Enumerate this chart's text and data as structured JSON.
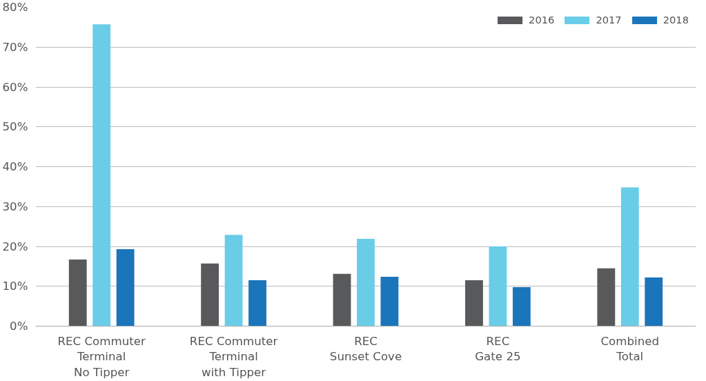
{
  "chart_data": {
    "type": "bar",
    "categories": [
      "REC Commuter\nTerminal\nNo Tipper",
      "REC Commuter\nTerminal\nwith Tipper",
      "REC\nSunset Cove",
      "REC\nGate 25",
      "Combined\nTotal"
    ],
    "series": [
      {
        "name": "2016",
        "color": "#58595b",
        "values": [
          16.7,
          15.7,
          13.1,
          11.5,
          14.5
        ]
      },
      {
        "name": "2017",
        "color": "#6acde8",
        "values": [
          75.7,
          22.9,
          21.9,
          20.0,
          34.8
        ]
      },
      {
        "name": "2018",
        "color": "#1b75bb",
        "values": [
          19.3,
          11.5,
          12.4,
          9.8,
          12.2
        ]
      }
    ],
    "ylim": [
      0,
      80
    ],
    "yticks": [
      {
        "value": 0,
        "label": "0%"
      },
      {
        "value": 10,
        "label": "10%"
      },
      {
        "value": 20,
        "label": "20%"
      },
      {
        "value": 30,
        "label": "30%"
      },
      {
        "value": 40,
        "label": "40%"
      },
      {
        "value": 50,
        "label": "50%"
      },
      {
        "value": 60,
        "label": "60%"
      },
      {
        "value": 70,
        "label": "70%"
      },
      {
        "value": 80,
        "label": "80%"
      }
    ],
    "grid": "y",
    "legend": "top right"
  }
}
